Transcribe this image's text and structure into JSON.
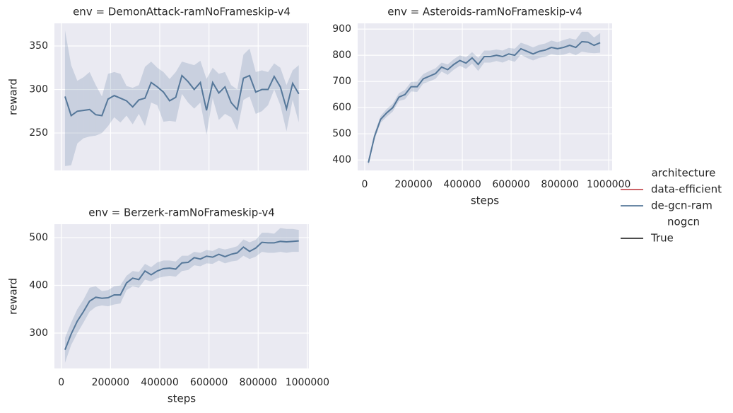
{
  "chart_data": [
    {
      "type": "line",
      "title": "env = DemonAttack-ramNoFrameskip-v4",
      "ylabel": "reward",
      "x_tick_labels": false,
      "grid": true,
      "x": [
        15000,
        40000,
        65000,
        90000,
        115000,
        140000,
        165000,
        190000,
        215000,
        240000,
        265000,
        290000,
        315000,
        340000,
        365000,
        390000,
        415000,
        440000,
        465000,
        490000,
        515000,
        540000,
        565000,
        590000,
        615000,
        640000,
        665000,
        690000,
        715000,
        740000,
        765000,
        790000,
        815000,
        840000,
        865000,
        890000,
        915000,
        940000,
        965000
      ],
      "xlim": [
        -28000,
        1006000
      ],
      "xticks": [
        0,
        200000,
        400000,
        600000,
        800000,
        1000000
      ],
      "ylim": [
        207,
        376
      ],
      "yticks": [
        250,
        300,
        350
      ],
      "series": [
        {
          "color": "#56789a",
          "values": [
            292,
            270,
            275,
            276,
            277,
            271,
            270,
            289,
            293,
            290,
            287,
            280,
            288,
            290,
            308,
            303,
            297,
            287,
            291,
            316,
            309,
            300,
            308,
            276,
            308,
            296,
            303,
            285,
            277,
            313,
            316,
            297,
            300,
            300,
            315,
            303,
            278,
            307,
            295
          ],
          "upper": [
            368,
            328,
            310,
            314,
            320,
            305,
            292,
            318,
            320,
            318,
            304,
            302,
            305,
            326,
            332,
            325,
            320,
            312,
            320,
            332,
            330,
            328,
            333,
            312,
            325,
            318,
            320,
            305,
            300,
            340,
            347,
            320,
            322,
            320,
            330,
            325,
            305,
            322,
            328
          ],
          "lower": [
            212,
            213,
            238,
            244,
            246,
            247,
            250,
            258,
            268,
            262,
            270,
            260,
            272,
            258,
            285,
            282,
            263,
            264,
            263,
            295,
            285,
            278,
            285,
            248,
            290,
            265,
            272,
            268,
            253,
            288,
            292,
            272,
            275,
            282,
            300,
            282,
            252,
            288,
            262
          ]
        }
      ]
    },
    {
      "type": "line",
      "title": "env = Asteroids-ramNoFrameskip-v4",
      "xlabel": "steps",
      "x_tick_labels": true,
      "grid": true,
      "x": [
        15000,
        40000,
        65000,
        90000,
        115000,
        140000,
        165000,
        190000,
        215000,
        240000,
        265000,
        290000,
        315000,
        340000,
        365000,
        390000,
        415000,
        440000,
        465000,
        490000,
        515000,
        540000,
        565000,
        590000,
        615000,
        640000,
        665000,
        690000,
        715000,
        740000,
        765000,
        790000,
        815000,
        840000,
        865000,
        890000,
        915000,
        940000,
        965000
      ],
      "xlim": [
        -29000,
        1014000
      ],
      "xticks": [
        0,
        200000,
        400000,
        600000,
        800000,
        1000000
      ],
      "ylim": [
        360,
        922
      ],
      "yticks": [
        400,
        500,
        600,
        700,
        800,
        900
      ],
      "series": [
        {
          "color": "#56789a",
          "values": [
            390,
            490,
            555,
            580,
            600,
            640,
            650,
            680,
            680,
            710,
            720,
            730,
            755,
            745,
            765,
            780,
            770,
            790,
            765,
            795,
            795,
            800,
            795,
            805,
            800,
            825,
            815,
            805,
            815,
            820,
            830,
            825,
            830,
            838,
            830,
            852,
            850,
            838,
            848
          ],
          "upper": [
            400,
            502,
            568,
            595,
            615,
            655,
            668,
            698,
            700,
            728,
            740,
            750,
            772,
            765,
            785,
            800,
            792,
            812,
            790,
            818,
            818,
            822,
            818,
            828,
            825,
            848,
            840,
            830,
            840,
            845,
            856,
            850,
            858,
            865,
            860,
            890,
            890,
            868,
            885
          ],
          "lower": [
            380,
            478,
            542,
            565,
            585,
            625,
            632,
            662,
            660,
            692,
            700,
            710,
            738,
            725,
            745,
            760,
            748,
            768,
            740,
            772,
            772,
            778,
            772,
            782,
            775,
            802,
            790,
            780,
            790,
            795,
            804,
            800,
            802,
            810,
            800,
            814,
            810,
            808,
            810
          ]
        }
      ]
    },
    {
      "type": "line",
      "title": "env = Berzerk-ramNoFrameskip-v4",
      "xlabel": "steps",
      "ylabel": "reward",
      "x_tick_labels": true,
      "grid": true,
      "x": [
        15000,
        40000,
        65000,
        90000,
        115000,
        140000,
        165000,
        190000,
        215000,
        240000,
        265000,
        290000,
        315000,
        340000,
        365000,
        390000,
        415000,
        440000,
        465000,
        490000,
        515000,
        540000,
        565000,
        590000,
        615000,
        640000,
        665000,
        690000,
        715000,
        740000,
        765000,
        790000,
        815000,
        840000,
        865000,
        890000,
        915000,
        940000,
        965000
      ],
      "xlim": [
        -28000,
        1006000
      ],
      "xticks": [
        0,
        200000,
        400000,
        600000,
        800000,
        1000000
      ],
      "ylim": [
        226,
        528
      ],
      "yticks": [
        300,
        400,
        500
      ],
      "series": [
        {
          "color": "#56789a",
          "values": [
            265,
            298,
            325,
            345,
            367,
            375,
            373,
            374,
            380,
            380,
            405,
            415,
            412,
            430,
            422,
            430,
            435,
            436,
            434,
            447,
            448,
            458,
            455,
            461,
            459,
            465,
            460,
            465,
            468,
            480,
            471,
            478,
            490,
            489,
            489,
            492,
            491,
            492,
            493
          ],
          "upper": [
            290,
            322,
            350,
            370,
            395,
            398,
            388,
            390,
            398,
            400,
            420,
            430,
            428,
            445,
            438,
            448,
            452,
            452,
            450,
            462,
            462,
            470,
            468,
            474,
            472,
            478,
            475,
            478,
            482,
            496,
            490,
            495,
            510,
            510,
            508,
            520,
            518,
            518,
            516
          ],
          "lower": [
            238,
            275,
            300,
            322,
            345,
            355,
            358,
            356,
            360,
            362,
            390,
            398,
            395,
            412,
            408,
            415,
            418,
            420,
            418,
            430,
            432,
            442,
            440,
            446,
            445,
            452,
            446,
            450,
            452,
            462,
            455,
            460,
            470,
            468,
            468,
            470,
            468,
            470,
            470
          ]
        }
      ]
    }
  ],
  "legend": {
    "sections": [
      {
        "title": "architecture",
        "items": [
          {
            "name": "data-efficient",
            "color": "#c44e52"
          },
          {
            "name": "de-gcn-ram",
            "color": "#56789a"
          }
        ]
      },
      {
        "title": "nogcn",
        "items": [
          {
            "name": "True",
            "color": "#333333"
          }
        ]
      }
    ]
  }
}
